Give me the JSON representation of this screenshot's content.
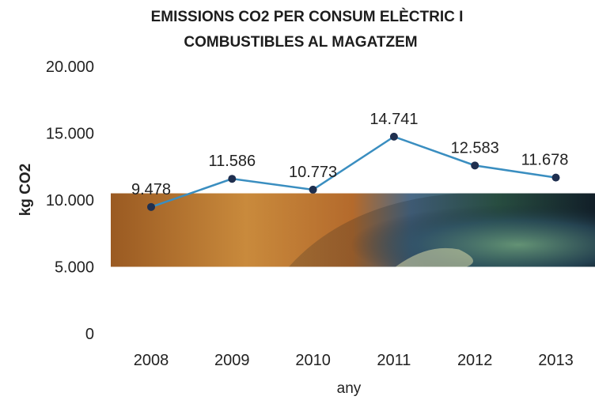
{
  "chart_data": {
    "type": "line",
    "title": "EMISSIONS CO2 PER CONSUM ELÈCTRIC I",
    "subtitle": "COMBUSTIBLES AL MAGATZEM",
    "xlabel": "any",
    "ylabel": "kg CO2",
    "categories": [
      "2008",
      "2009",
      "2010",
      "2011",
      "2012",
      "2013"
    ],
    "values": [
      9478,
      11586,
      10773,
      14741,
      12583,
      11678
    ],
    "value_labels": [
      "9.478",
      "11.586",
      "10.773",
      "14.741",
      "12.583",
      "11.678"
    ],
    "ylim": [
      0,
      20000
    ],
    "y_ticks": [
      {
        "value": 0,
        "label": "0"
      },
      {
        "value": 5000,
        "label": "5.000"
      },
      {
        "value": 10000,
        "label": "10.000"
      },
      {
        "value": 15000,
        "label": "15.000"
      },
      {
        "value": 20000,
        "label": "20.000"
      }
    ],
    "grid": false,
    "legend": "none",
    "line_color": "#3a8ec0",
    "marker_color": "#1f2f4f",
    "background_image_band": [
      5000,
      10500
    ]
  }
}
